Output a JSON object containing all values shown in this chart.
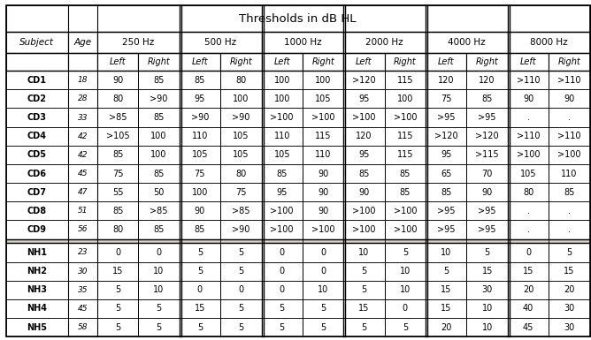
{
  "title": "Thresholds in dB HL",
  "freq_labels": [
    "250 Hz",
    "500 Hz",
    "1000 Hz",
    "2000 Hz",
    "4000 Hz",
    "8000 Hz"
  ],
  "rows": [
    [
      "CD1",
      "18",
      "90",
      "85",
      "85",
      "80",
      "100",
      "100",
      ">120",
      "115",
      "120",
      "120",
      ">110",
      ">110"
    ],
    [
      "CD2",
      "28",
      "80",
      ">90",
      "95",
      "100",
      "100",
      "105",
      "95",
      "100",
      "75",
      "85",
      "90",
      "90"
    ],
    [
      "CD3",
      "33",
      ">85",
      "85",
      ">90",
      ">90",
      ">100",
      ">100",
      ">100",
      ">100",
      ">95",
      ">95",
      ".",
      "."
    ],
    [
      "CD4",
      "42",
      ">105",
      "100",
      "110",
      "105",
      "110",
      "115",
      "120",
      "115",
      ">120",
      ">120",
      ">110",
      ">110"
    ],
    [
      "CD5",
      "42",
      "85",
      "100",
      "105",
      "105",
      "105",
      "110",
      "95",
      "115",
      "95",
      ">115",
      ">100",
      ">100"
    ],
    [
      "CD6",
      "45",
      "75",
      "85",
      "75",
      "80",
      "85",
      "90",
      "85",
      "85",
      "65",
      "70",
      "105",
      "110"
    ],
    [
      "CD7",
      "47",
      "55",
      "50",
      "100",
      "75",
      "95",
      "90",
      "90",
      "85",
      "85",
      "90",
      "80",
      "85"
    ],
    [
      "CD8",
      "51",
      "85",
      ">85",
      "90",
      ">85",
      ">100",
      "90",
      ">100",
      ">100",
      ">95",
      ">95",
      ".",
      "."
    ],
    [
      "CD9",
      "56",
      "80",
      "85",
      "85",
      ">90",
      ">100",
      ">100",
      ">100",
      ">100",
      ">95",
      ">95",
      ".",
      "."
    ],
    [
      "NH1",
      "23",
      "0",
      "0",
      "5",
      "5",
      "0",
      "0",
      "10",
      "5",
      "10",
      "5",
      "0",
      "5"
    ],
    [
      "NH2",
      "30",
      "15",
      "10",
      "5",
      "5",
      "0",
      "0",
      "5",
      "10",
      "5",
      "15",
      "15",
      "15"
    ],
    [
      "NH3",
      "35",
      "5",
      "10",
      "0",
      "0",
      "0",
      "10",
      "5",
      "10",
      "15",
      "30",
      "20",
      "20"
    ],
    [
      "NH4",
      "45",
      "5",
      "5",
      "15",
      "5",
      "5",
      "5",
      "15",
      "0",
      "15",
      "10",
      "40",
      "30"
    ],
    [
      "NH5",
      "58",
      "5",
      "5",
      "5",
      "5",
      "5",
      "5",
      "5",
      "5",
      "20",
      "10",
      "45",
      "30"
    ]
  ],
  "cd_rows": 9,
  "nh_rows": 5,
  "bg_color": "#ffffff",
  "cell_bg_white": "#ffffff",
  "header_bg": "#ffffff",
  "border_color": "#000000",
  "title_fontsize": 9.5,
  "header_fontsize": 7.5,
  "subheader_fontsize": 7.0,
  "data_fontsize": 7.0
}
